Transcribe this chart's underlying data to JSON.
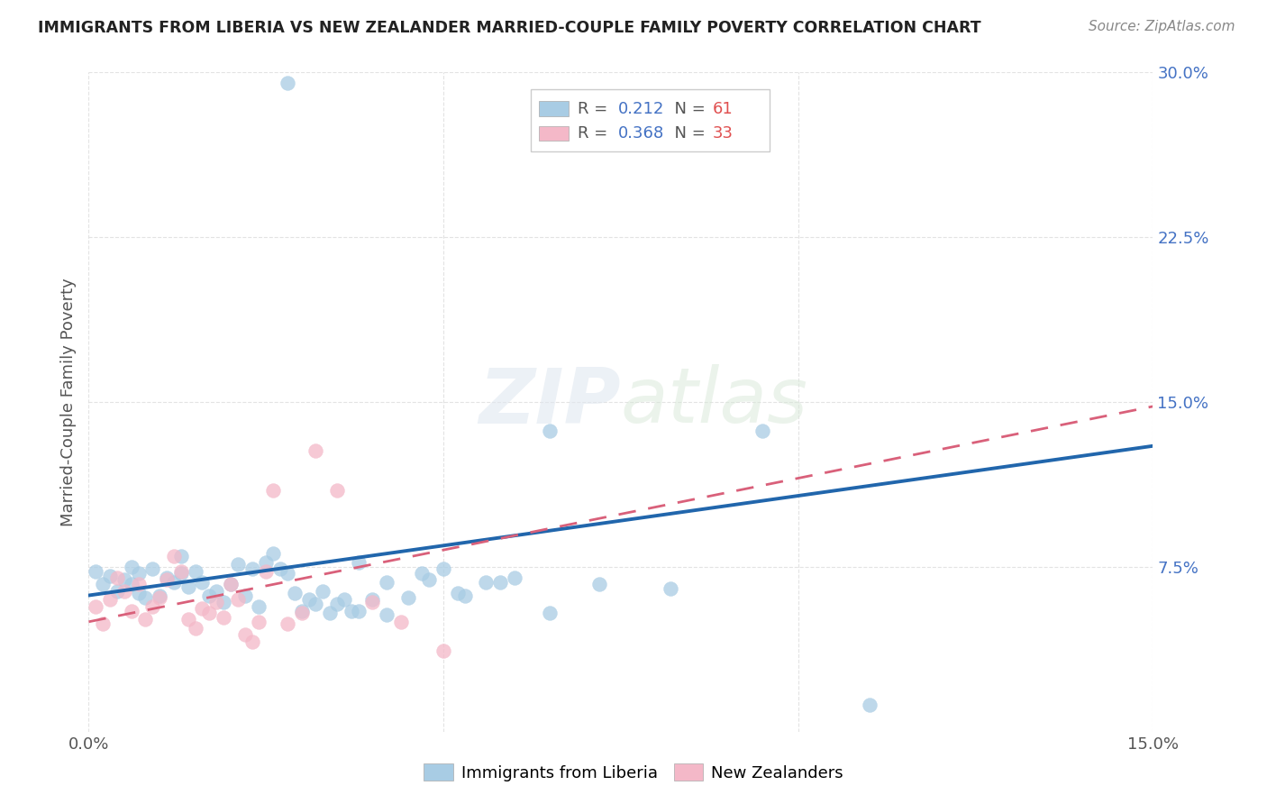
{
  "title": "IMMIGRANTS FROM LIBERIA VS NEW ZEALANDER MARRIED-COUPLE FAMILY POVERTY CORRELATION CHART",
  "source": "Source: ZipAtlas.com",
  "ylabel": "Married-Couple Family Poverty",
  "xlim": [
    0.0,
    0.15
  ],
  "ylim": [
    0.0,
    0.3
  ],
  "blue_color": "#a8cce4",
  "pink_color": "#f4b8c8",
  "blue_line_color": "#2166ac",
  "pink_line_color": "#d9607a",
  "blue_r": "0.212",
  "blue_n": "61",
  "pink_r": "0.368",
  "pink_n": "33",
  "r_color": "#4472c4",
  "n_color": "#e05050",
  "text_color": "#555555",
  "watermark": "ZIPatlas",
  "watermark_color": "#e0e8f0",
  "grid_color": "#dddddd",
  "ytick_color": "#4472c4",
  "liberia_x": [
    0.001,
    0.002,
    0.003,
    0.004,
    0.005,
    0.006,
    0.006,
    0.007,
    0.007,
    0.008,
    0.009,
    0.01,
    0.011,
    0.012,
    0.013,
    0.013,
    0.014,
    0.015,
    0.016,
    0.017,
    0.018,
    0.019,
    0.02,
    0.021,
    0.022,
    0.023,
    0.024,
    0.025,
    0.026,
    0.027,
    0.028,
    0.029,
    0.03,
    0.031,
    0.032,
    0.033,
    0.034,
    0.035,
    0.036,
    0.037,
    0.038,
    0.04,
    0.042,
    0.045,
    0.048,
    0.05,
    0.053,
    0.056,
    0.06,
    0.065,
    0.038,
    0.042,
    0.047,
    0.052,
    0.058,
    0.065,
    0.072,
    0.082,
    0.095,
    0.11,
    0.028
  ],
  "liberia_y": [
    0.073,
    0.067,
    0.071,
    0.064,
    0.069,
    0.067,
    0.075,
    0.063,
    0.072,
    0.061,
    0.074,
    0.062,
    0.07,
    0.068,
    0.072,
    0.08,
    0.066,
    0.073,
    0.068,
    0.062,
    0.064,
    0.059,
    0.067,
    0.076,
    0.062,
    0.074,
    0.057,
    0.077,
    0.081,
    0.074,
    0.072,
    0.063,
    0.055,
    0.06,
    0.058,
    0.064,
    0.054,
    0.058,
    0.06,
    0.055,
    0.055,
    0.06,
    0.053,
    0.061,
    0.069,
    0.074,
    0.062,
    0.068,
    0.07,
    0.054,
    0.077,
    0.068,
    0.072,
    0.063,
    0.068,
    0.137,
    0.067,
    0.065,
    0.137,
    0.012,
    0.295
  ],
  "nz_x": [
    0.001,
    0.002,
    0.003,
    0.004,
    0.005,
    0.006,
    0.007,
    0.008,
    0.009,
    0.01,
    0.011,
    0.012,
    0.013,
    0.014,
    0.015,
    0.016,
    0.017,
    0.018,
    0.019,
    0.02,
    0.021,
    0.022,
    0.023,
    0.024,
    0.025,
    0.026,
    0.028,
    0.03,
    0.032,
    0.035,
    0.04,
    0.044,
    0.05
  ],
  "nz_y": [
    0.057,
    0.049,
    0.06,
    0.07,
    0.064,
    0.055,
    0.067,
    0.051,
    0.057,
    0.061,
    0.069,
    0.08,
    0.073,
    0.051,
    0.047,
    0.056,
    0.054,
    0.059,
    0.052,
    0.067,
    0.06,
    0.044,
    0.041,
    0.05,
    0.073,
    0.11,
    0.049,
    0.054,
    0.128,
    0.11,
    0.059,
    0.05,
    0.037
  ],
  "blue_line_x0": 0.0,
  "blue_line_y0": 0.062,
  "blue_line_x1": 0.15,
  "blue_line_y1": 0.13,
  "pink_line_x0": 0.0,
  "pink_line_y0": 0.05,
  "pink_line_x1": 0.15,
  "pink_line_y1": 0.148
}
